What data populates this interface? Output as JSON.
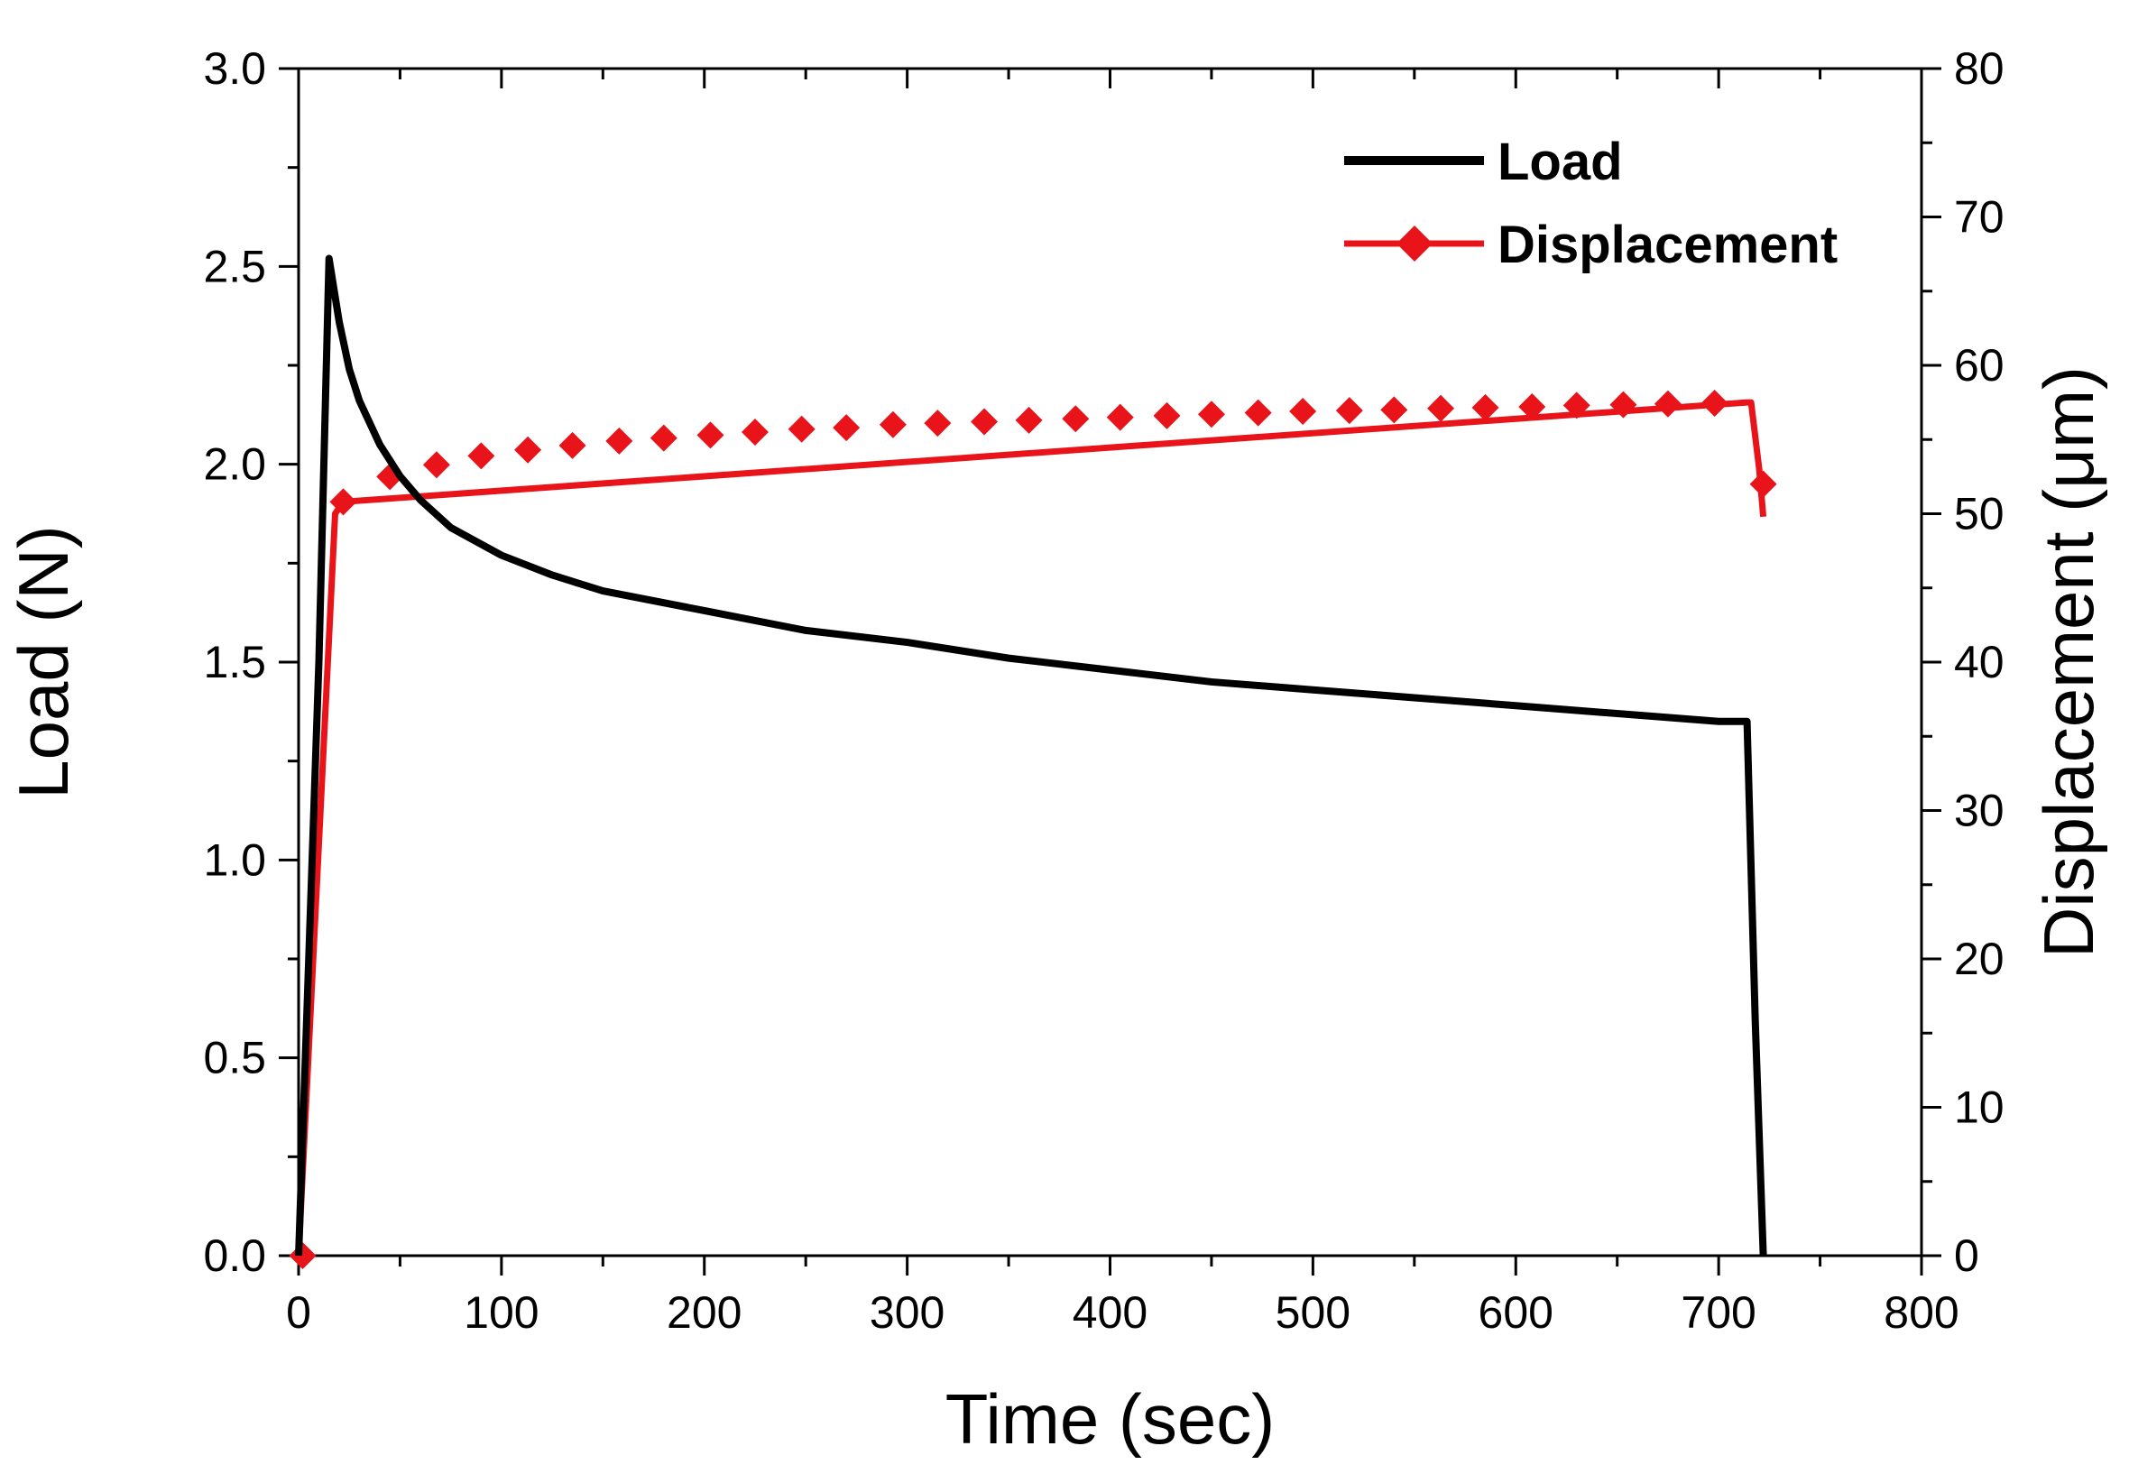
{
  "chart_data": {
    "type": "line",
    "title": "",
    "xlabel": "Time (sec)",
    "ylabel": "Load (N)",
    "y2label": "Displacement (μm)",
    "xlim": [
      0,
      800
    ],
    "ylim": [
      0,
      3.0
    ],
    "y2lim": [
      0,
      80
    ],
    "x_ticks": [
      "0",
      "100",
      "200",
      "300",
      "400",
      "500",
      "600",
      "700",
      "800"
    ],
    "y_ticks": [
      "0.0",
      "0.5",
      "1.0",
      "1.5",
      "2.0",
      "2.5",
      "3.0"
    ],
    "y2_ticks": [
      "0",
      "10",
      "20",
      "30",
      "40",
      "50",
      "60",
      "70",
      "80"
    ],
    "grid": false,
    "legend_position": "top-right",
    "series": [
      {
        "name": "Load",
        "axis": "left",
        "color": "#000000",
        "marker": "none",
        "x": [
          0,
          10,
          15,
          20,
          25,
          30,
          40,
          50,
          60,
          75,
          100,
          125,
          150,
          200,
          250,
          300,
          350,
          400,
          450,
          500,
          550,
          600,
          650,
          700,
          714,
          718,
          722
        ],
        "y": [
          0.0,
          1.5,
          2.52,
          2.36,
          2.24,
          2.16,
          2.05,
          1.97,
          1.91,
          1.84,
          1.77,
          1.72,
          1.68,
          1.63,
          1.58,
          1.55,
          1.51,
          1.48,
          1.45,
          1.43,
          1.41,
          1.39,
          1.37,
          1.35,
          1.35,
          0.6,
          0.0
        ]
      },
      {
        "name": "Displacement",
        "axis": "right",
        "color": "#e8141a",
        "marker": "diamond",
        "x": [
          2,
          22,
          45,
          68,
          90,
          113,
          135,
          158,
          180,
          203,
          225,
          248,
          270,
          293,
          315,
          338,
          360,
          383,
          405,
          428,
          450,
          473,
          495,
          518,
          540,
          563,
          585,
          608,
          630,
          653,
          675,
          698,
          722
        ],
        "y": [
          0.0,
          50.8,
          52.5,
          53.3,
          53.9,
          54.3,
          54.6,
          54.9,
          55.1,
          55.3,
          55.5,
          55.7,
          55.8,
          56.0,
          56.1,
          56.2,
          56.3,
          56.4,
          56.5,
          56.6,
          56.7,
          56.8,
          56.9,
          56.95,
          57.0,
          57.1,
          57.15,
          57.2,
          57.3,
          57.35,
          57.4,
          57.45,
          52.0
        ],
        "line_x": [
          0,
          18,
          22,
          714,
          716,
          720,
          722
        ],
        "line_y": [
          0.0,
          50.0,
          50.8,
          57.5,
          57.5,
          53.0,
          49.8
        ]
      }
    ]
  }
}
